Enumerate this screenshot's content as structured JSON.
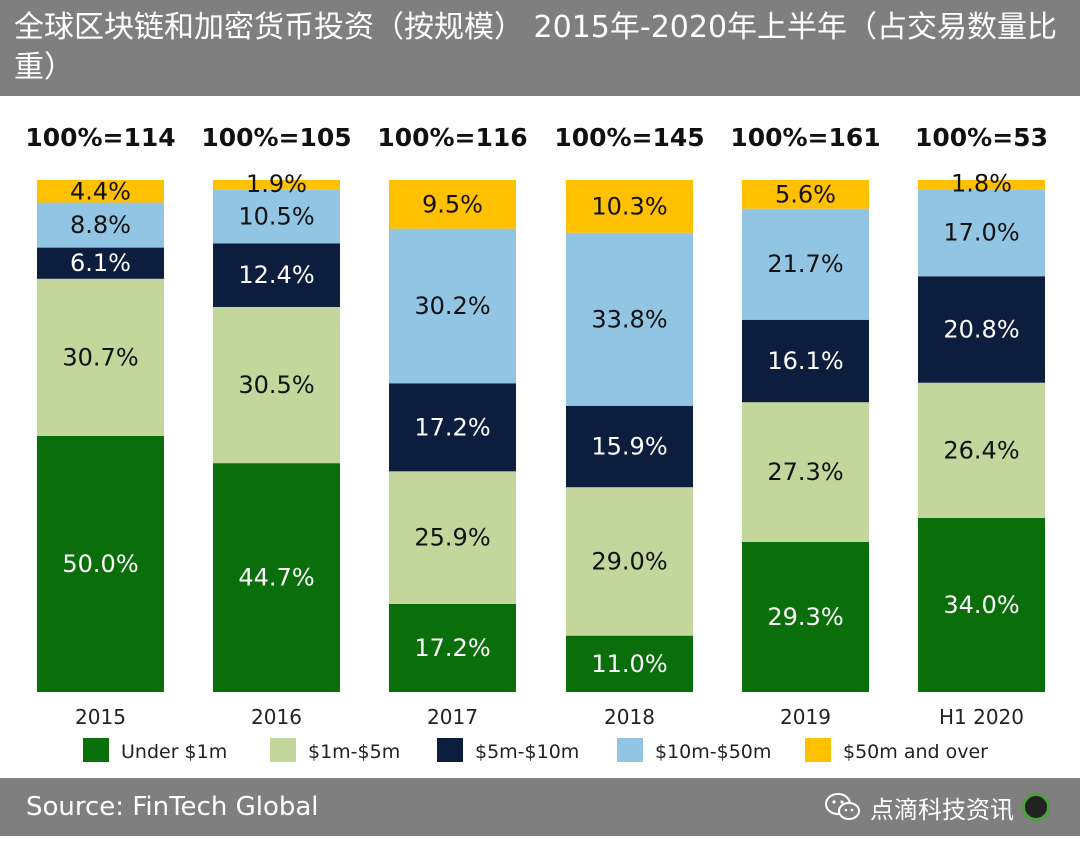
{
  "header": {
    "title": "全球区块链和加密货币投资（按规模） 2015年-2020年上半年（占交易数量比重）"
  },
  "footer": {
    "source": "Source: FinTech Global",
    "watermark": "点滴科技资讯"
  },
  "colors": {
    "header_bg": "#7f7f7f",
    "under_1m": "#0a6e0a",
    "1m_5m": "#c3d69b",
    "5m_10m": "#0d1d3d",
    "10m_50m": "#92c5e3",
    "50m_over": "#ffc000"
  },
  "chart_data": {
    "type": "bar",
    "stacked": true,
    "percent_stacked": true,
    "categories": [
      "2015",
      "2016",
      "2017",
      "2018",
      "2019",
      "H1 2020"
    ],
    "totals": [
      "100%=114",
      "100%=105",
      "100%=116",
      "100%=145",
      "100%=161",
      "100%=53"
    ],
    "series": [
      {
        "name": "Under $1m",
        "color": "#0a6e0a",
        "values": [
          50.0,
          44.7,
          17.2,
          11.0,
          29.3,
          34.0
        ],
        "labels": [
          "50.0%",
          "44.7%",
          "17.2%",
          "11.0%",
          "29.3%",
          "34.0%"
        ]
      },
      {
        "name": "$1m-$5m",
        "color": "#c3d69b",
        "values": [
          30.7,
          30.5,
          25.9,
          29.0,
          27.3,
          26.4
        ],
        "labels": [
          "30.7%",
          "30.5%",
          "25.9%",
          "29.0%",
          "27.3%",
          "26.4%"
        ]
      },
      {
        "name": "$5m-$10m",
        "color": "#0d1d3d",
        "values": [
          6.1,
          12.4,
          17.2,
          15.9,
          16.1,
          20.8
        ],
        "labels": [
          "6.1%",
          "12.4%",
          "17.2%",
          "15.9%",
          "16.1%",
          "20.8%"
        ]
      },
      {
        "name": "$10m-$50m",
        "color": "#92c5e3",
        "values": [
          8.8,
          10.5,
          30.2,
          33.8,
          21.7,
          17.0
        ],
        "labels": [
          "8.8%",
          "10.5%",
          "30.2%",
          "33.8%",
          "21.7%",
          "17.0%"
        ]
      },
      {
        "name": "$50m and over",
        "color": "#ffc000",
        "values": [
          4.4,
          1.9,
          9.5,
          10.3,
          5.6,
          1.8
        ],
        "labels": [
          "4.4%",
          "1.9%",
          "9.5%",
          "10.3%",
          "5.6%",
          "1.8%"
        ]
      }
    ],
    "ylim": [
      0,
      100
    ],
    "legend_position": "bottom",
    "grid": false
  }
}
